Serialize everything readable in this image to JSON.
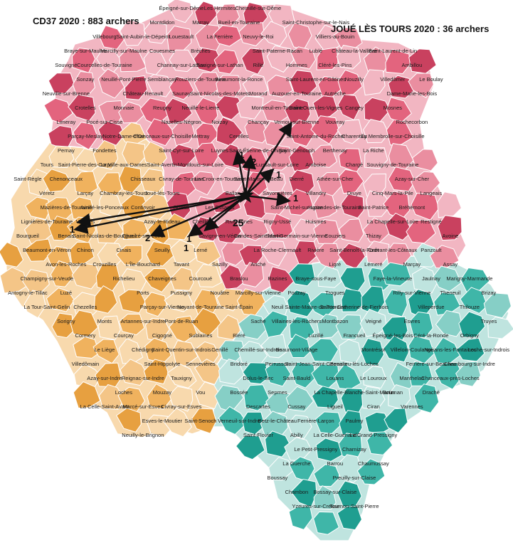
{
  "header": {
    "left_title": "CD37 2020 : 883 archers",
    "right_title": "JOUÉ LÈS TOURS 2020 : 36 archers"
  },
  "colors": {
    "north_region": "#e3647e",
    "north_region_light": "#f2b6c2",
    "west_region": "#f0b25e",
    "west_region_light": "#f8d9ad",
    "south_region": "#3fb6a8",
    "south_region_light": "#bfe4df",
    "arrow": "#111111",
    "border": "#ffffff"
  },
  "center": "Joué-lès-Tours",
  "arrow_counts": {
    "left": "1",
    "ingrandes": "2",
    "bottom": "1",
    "drive": "1",
    "center": "25",
    "right": "1",
    "upright": "1",
    "uptown": "2",
    "up": "1"
  },
  "communes": [
    "Épeigné-sur-Dême",
    "Les Hermites",
    "Chemillé-sur-Dême",
    "Montdidon",
    "Marray",
    "Bueil-en-Touraine",
    "Saint-Christophe-sur-le-Nais",
    "Villebourg",
    "Saint-Aubin-le-Dépeint",
    "Louestault",
    "La Ferrière",
    "Neuvy-le-Roi",
    "Villiers-au-Bouin",
    "Braye-sur-Maulne",
    "Marcilly-sur-Maulne",
    "Couesmes",
    "Brèches",
    "Saint-Paterne-Racan",
    "Lublé",
    "Château-la-Vallière",
    "Saint-Laurent-de-Lin",
    "Souvigné",
    "Courcelles-de-Touraine",
    "Channay-sur-Lathan",
    "Savigné-sur-Lathan",
    "Rillé",
    "Hommes",
    "Cléré-les-Pins",
    "Ambillou",
    "Sonzay",
    "Neuillé-Pont-Pierre",
    "Semblançay",
    "Rouziers-de-Touraine",
    "Beaumont-la-Ronce",
    "Saint-Laurent-en-Gâtines",
    "Nouzilly",
    "Villedômer",
    "Le Boulay",
    "Neuville-sur-Brenne",
    "Château-Renault",
    "Saunay",
    "Saint-Nicolas-des-Motets",
    "Morand",
    "Auzouer-en-Touraine",
    "Autrèche",
    "Dame-Marie-les-Bois",
    "Crotelles",
    "Monnaie",
    "Reugny",
    "Neuillé-le-Lierre",
    "Montreuil-en-Touraine",
    "Saint-Ouen-les-Vignes",
    "Cangey",
    "Mosnes",
    "Limeray",
    "Pocé-sur-Cisse",
    "Nazelles-Négron",
    "Noizay",
    "Chançay",
    "Vernou-sur-Brenne",
    "Vouvray",
    "Rochecorbon",
    "Parçay-Meslay",
    "Notre-Dame-d'Oé",
    "Chanceaux-sur-Choisille",
    "Mettray",
    "Cerelles",
    "Saint-Antoine-du-Rocher",
    "Charentilly",
    "La Membrolle-sur-Choisille",
    "Pernay",
    "Fondettes",
    "Saint-Cyr-sur-Loire",
    "Luynes",
    "Saint-Étienne-de-Chigny",
    "Saint-Genouph",
    "Berthenay",
    "La Riche",
    "Tours",
    "Saint-Pierre-des-Corps",
    "La Ville-aux-Dames",
    "Saint-Avertin",
    "Montlouis-sur-Loire",
    "Lussault-sur-Loire",
    "Amboise",
    "Chargé",
    "Souvigny-de-Touraine",
    "Saint-Règle",
    "Chenonceaux",
    "Chisseaux",
    "Civray-de-Touraine",
    "La Croix-en-Touraine",
    "Saint-Martin-le-Beau",
    "Dierré",
    "Athée-sur-Cher",
    "Azay-sur-Cher",
    "Véretz",
    "Larçay",
    "Chambray-lès-Tours",
    "Joué-lès-Tours",
    "Ballan-Miré",
    "Savonnières",
    "Villandry",
    "Druye",
    "Cinq-Mars-la-Pile",
    "Langeais",
    "Mazières-de-Touraine",
    "Avrillé-les-Ponceaux",
    "Continvoir",
    "Gizeux",
    "Les Essards",
    "Saint-Michel-sur-Loire",
    "Ingrandes-de-Touraine",
    "Saint-Patrice",
    "Bréhémont",
    "Lignières-de-Touraine",
    "Vallères",
    "Azay-le-Rideau",
    "Cheillé",
    "Rivarennes",
    "Rigny-Ussé",
    "Huismes",
    "La Chapelle-sur-Loire",
    "Restigné",
    "Bourgueil",
    "Benais",
    "Saint-Nicolas-de-Bourgueil",
    "Chouzé-sur-Loire",
    "Savigny-en-Véron",
    "Candes-Saint-Martin",
    "Saint-Germain-sur-Vienne",
    "Couziers",
    "Thizay",
    "Avoine",
    "Beaumont-en-Véron",
    "Chinon",
    "Cinais",
    "Seuilly",
    "Lerné",
    "La Roche-Clermault",
    "Rivière",
    "Saint-Benoît-la-Forêt",
    "Cravant-les-Côteaux",
    "Panzoult",
    "Avon-les-Roches",
    "Crouzilles",
    "L'Île-Bouchard",
    "Tavant",
    "Sazilly",
    "Anché",
    "Ligré",
    "Lémeré",
    "Marçay",
    "Assay",
    "Champigny-sur-Veude",
    "Richelieu",
    "Chaveignes",
    "Courcoué",
    "Braslou",
    "Razines",
    "Braye-sous-Faye",
    "Faye-la-Vineuse",
    "Jaulnay",
    "Marigny-Marmande",
    "Antogny-le-Tillac",
    "Luzé",
    "Ports",
    "Pussigny",
    "Nouâtre",
    "Marcilly-sur-Vienne",
    "Pouzay",
    "Trogues",
    "Rilly-sur-Vienne",
    "Theneuil",
    "Brizay",
    "La Tour-Saint-Gelin",
    "Chezelles",
    "Parçay-sur-Vienne",
    "Noyant-de-Touraine",
    "Saint-Épain",
    "Neuil",
    "Sainte-Maure-de-Touraine",
    "Sainte-Catherine-de-Fierbois",
    "Villeperdue",
    "Thilouze",
    "Sorigny",
    "Monts",
    "Artannes-sur-Indre",
    "Pont-de-Ruan",
    "Saché",
    "Villaines-les-Rochers",
    "Montbazon",
    "Veigné",
    "Esvres",
    "Truyes",
    "Cormery",
    "Courçay",
    "Cigogné",
    "Sublaines",
    "Bléré",
    "Luzillé",
    "Francueil",
    "Épeigné-les-Bois",
    "Céré-la-Ronde",
    "Orbigny",
    "Le Liège",
    "Chédigny",
    "Saint-Quentin-sur-Indrois",
    "Genillé",
    "Chemillé-sur-Indrois",
    "Beaumont-Village",
    "Montrésor",
    "Villeloin-Coulangé",
    "Nouans-les-Fontaines",
    "Loché-sur-Indrois",
    "Villedômain",
    "Saint-Hippolyte",
    "Sennevières",
    "Bridoré",
    "Perrusson",
    "Saint-Jean-Saint-Germain",
    "Beaulieu-lès-Loches",
    "Ferrière-sur-Beaulieu",
    "Chambourg-sur-Indre",
    "Azay-sur-Indre",
    "Reignac-sur-Indre",
    "Tauxigny",
    "Dolus-le-Sec",
    "Saint-Bauld",
    "Louans",
    "Le Louroux",
    "Manthelan",
    "Chanceaux-près-Loches",
    "Loches",
    "Mouzay",
    "Vou",
    "Bossée",
    "Sepmes",
    "La Chapelle-Blanche-Saint-Martin",
    "Bournan",
    "Draché",
    "La Celle-Saint-Avant",
    "Marcé-sur-Esves",
    "Civray-sur-Esves",
    "Descartes",
    "Cussay",
    "Ligueil",
    "Ciran",
    "Varennes",
    "Esves-le-Moutier",
    "Saint-Senoch",
    "Verneuil-sur-Indre",
    "Betz-le-Château",
    "Ferrière-Larçon",
    "Paulmy",
    "Neuilly-le-Brignon",
    "Saint-Flovier",
    "Abilly",
    "La Celle-Guenand",
    "Le Grand-Pressigny",
    "Le Petit-Pressigny",
    "Charnizay",
    "La Guerche",
    "Barrou",
    "Chaumussay",
    "Boussay",
    "Preuilly-sur-Claise",
    "Chambon",
    "Bossay-sur-Claise",
    "Yzeures-sur-Creuse",
    "Tournon-Saint-Pierre"
  ]
}
